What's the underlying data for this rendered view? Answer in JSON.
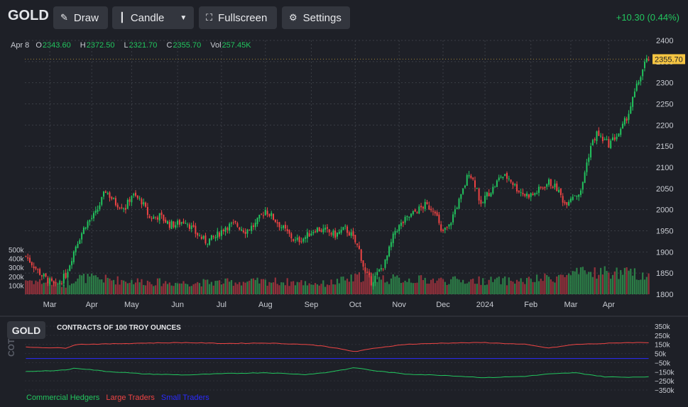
{
  "toolbar": {
    "symbol": "GOLD",
    "draw_label": "Draw",
    "candle_label": "Candle",
    "fullscreen_label": "Fullscreen",
    "settings_label": "Settings",
    "change_text": "+10.30 (0.44%)"
  },
  "ohlc": {
    "date": "Apr 8",
    "o_label": "O",
    "o": "2343.60",
    "h_label": "H",
    "h": "2372.50",
    "l_label": "L",
    "l": "2321.70",
    "c_label": "C",
    "c": "2355.70",
    "vol_label": "Vol",
    "vol": "257.45K"
  },
  "colors": {
    "up": "#22c55e",
    "down": "#ef4444",
    "background": "#1e2027",
    "grid": "#3a3d45",
    "last_price": "#f5c542",
    "commercial": "#22c55e",
    "large": "#ef4444",
    "small": "#2b2bff"
  },
  "cot": {
    "badge": "GOLD",
    "title": "CONTRACTS OF 100 TROY OUNCES",
    "axis_label": "COT",
    "legend": {
      "commercial": "Commercial Hedgers",
      "large": "Large Traders",
      "small": "Small Traders"
    }
  },
  "chart_data": [
    {
      "type": "candlestick",
      "title": "GOLD",
      "last_price_label": "2355.70",
      "ylim": [
        1800,
        2400
      ],
      "yticks": [
        "2400",
        "2350",
        "2300",
        "2250",
        "2200",
        "2150",
        "2100",
        "2050",
        "2000",
        "1950",
        "1900",
        "1850",
        "1800"
      ],
      "x_labels": [
        "Mar",
        "Apr",
        "May",
        "Jun",
        "Jul",
        "Aug",
        "Sep",
        "Oct",
        "Nov",
        "Dec",
        "2024",
        "Feb",
        "Mar",
        "Apr"
      ],
      "x_label_index": [
        12,
        33,
        53,
        76,
        98,
        120,
        143,
        165,
        187,
        209,
        230,
        253,
        273,
        292
      ],
      "close_path": [
        [
          0,
          1890
        ],
        [
          8,
          1845
        ],
        [
          15,
          1818
        ],
        [
          20,
          1845
        ],
        [
          25,
          1915
        ],
        [
          30,
          1965
        ],
        [
          35,
          1990
        ],
        [
          40,
          2045
        ],
        [
          45,
          2015
        ],
        [
          50,
          2005
        ],
        [
          53,
          2035
        ],
        [
          58,
          2020
        ],
        [
          62,
          1980
        ],
        [
          67,
          1985
        ],
        [
          72,
          1965
        ],
        [
          75,
          1965
        ],
        [
          80,
          1975
        ],
        [
          85,
          1945
        ],
        [
          90,
          1925
        ],
        [
          95,
          1935
        ],
        [
          100,
          1960
        ],
        [
          105,
          1965
        ],
        [
          110,
          1950
        ],
        [
          115,
          1965
        ],
        [
          120,
          2000
        ],
        [
          125,
          1975
        ],
        [
          130,
          1950
        ],
        [
          135,
          1925
        ],
        [
          140,
          1935
        ],
        [
          145,
          1955
        ],
        [
          150,
          1950
        ],
        [
          155,
          1940
        ],
        [
          160,
          1955
        ],
        [
          163,
          1940
        ],
        [
          167,
          1905
        ],
        [
          170,
          1850
        ],
        [
          173,
          1830
        ],
        [
          175,
          1840
        ],
        [
          180,
          1875
        ],
        [
          185,
          1950
        ],
        [
          190,
          1975
        ],
        [
          195,
          1995
        ],
        [
          200,
          2010
        ],
        [
          205,
          2000
        ],
        [
          208,
          1945
        ],
        [
          212,
          1960
        ],
        [
          215,
          2000
        ],
        [
          218,
          2030
        ],
        [
          220,
          2060
        ],
        [
          222,
          2090
        ],
        [
          224,
          2070
        ],
        [
          226,
          2050
        ],
        [
          228,
          2005
        ],
        [
          230,
          2030
        ],
        [
          234,
          2050
        ],
        [
          238,
          2080
        ],
        [
          242,
          2075
        ],
        [
          246,
          2050
        ],
        [
          250,
          2035
        ],
        [
          254,
          2035
        ],
        [
          258,
          2050
        ],
        [
          262,
          2065
        ],
        [
          266,
          2050
        ],
        [
          270,
          2015
        ],
        [
          274,
          2035
        ],
        [
          278,
          2040
        ],
        [
          280,
          2090
        ],
        [
          283,
          2150
        ],
        [
          286,
          2180
        ],
        [
          288,
          2170
        ],
        [
          292,
          2155
        ],
        [
          294,
          2165
        ],
        [
          298,
          2185
        ],
        [
          302,
          2230
        ],
        [
          306,
          2290
        ],
        [
          310,
          2345
        ],
        [
          312,
          2356
        ]
      ],
      "volume_scale": [
        0,
        500
      ],
      "volume_ticks": [
        "500k",
        "400k",
        "300k",
        "200k",
        "100k"
      ],
      "volume_profile_k": [
        [
          0,
          180
        ],
        [
          20,
          120
        ],
        [
          25,
          210
        ],
        [
          50,
          170
        ],
        [
          75,
          140
        ],
        [
          100,
          150
        ],
        [
          125,
          160
        ],
        [
          150,
          130
        ],
        [
          165,
          200
        ],
        [
          170,
          240
        ],
        [
          180,
          190
        ],
        [
          200,
          180
        ],
        [
          210,
          170
        ],
        [
          230,
          170
        ],
        [
          250,
          165
        ],
        [
          270,
          230
        ],
        [
          285,
          280
        ],
        [
          300,
          260
        ],
        [
          312,
          240
        ]
      ]
    },
    {
      "type": "line",
      "title": "CONTRACTS OF 100 TROY OUNCES",
      "ylim": [
        -350,
        350
      ],
      "yticks": [
        "350k",
        "250k",
        "150k",
        "50k",
        "−50k",
        "−150k",
        "−250k",
        "−350k"
      ],
      "series": [
        {
          "name": "Commercial Hedgers",
          "x": [
            0,
            20,
            25,
            40,
            60,
            80,
            100,
            120,
            140,
            150,
            165,
            175,
            190,
            210,
            230,
            250,
            262,
            275,
            290,
            300,
            312
          ],
          "values": [
            -150,
            -130,
            -110,
            -145,
            -175,
            -185,
            -170,
            -160,
            -180,
            -160,
            -105,
            -140,
            -175,
            -190,
            -215,
            -200,
            -175,
            -160,
            -205,
            -210,
            -205
          ]
        },
        {
          "name": "Large Traders",
          "x": [
            0,
            20,
            25,
            40,
            60,
            80,
            100,
            120,
            140,
            150,
            165,
            175,
            190,
            210,
            230,
            250,
            262,
            275,
            290,
            300,
            312
          ],
          "values": [
            120,
            110,
            150,
            155,
            165,
            170,
            160,
            165,
            150,
            130,
            70,
            110,
            150,
            165,
            170,
            150,
            110,
            150,
            160,
            170,
            170
          ]
        },
        {
          "name": "Small Traders",
          "x": [
            0,
            100,
            200,
            312
          ],
          "values": [
            -5,
            -5,
            -5,
            -5
          ]
        }
      ]
    }
  ]
}
